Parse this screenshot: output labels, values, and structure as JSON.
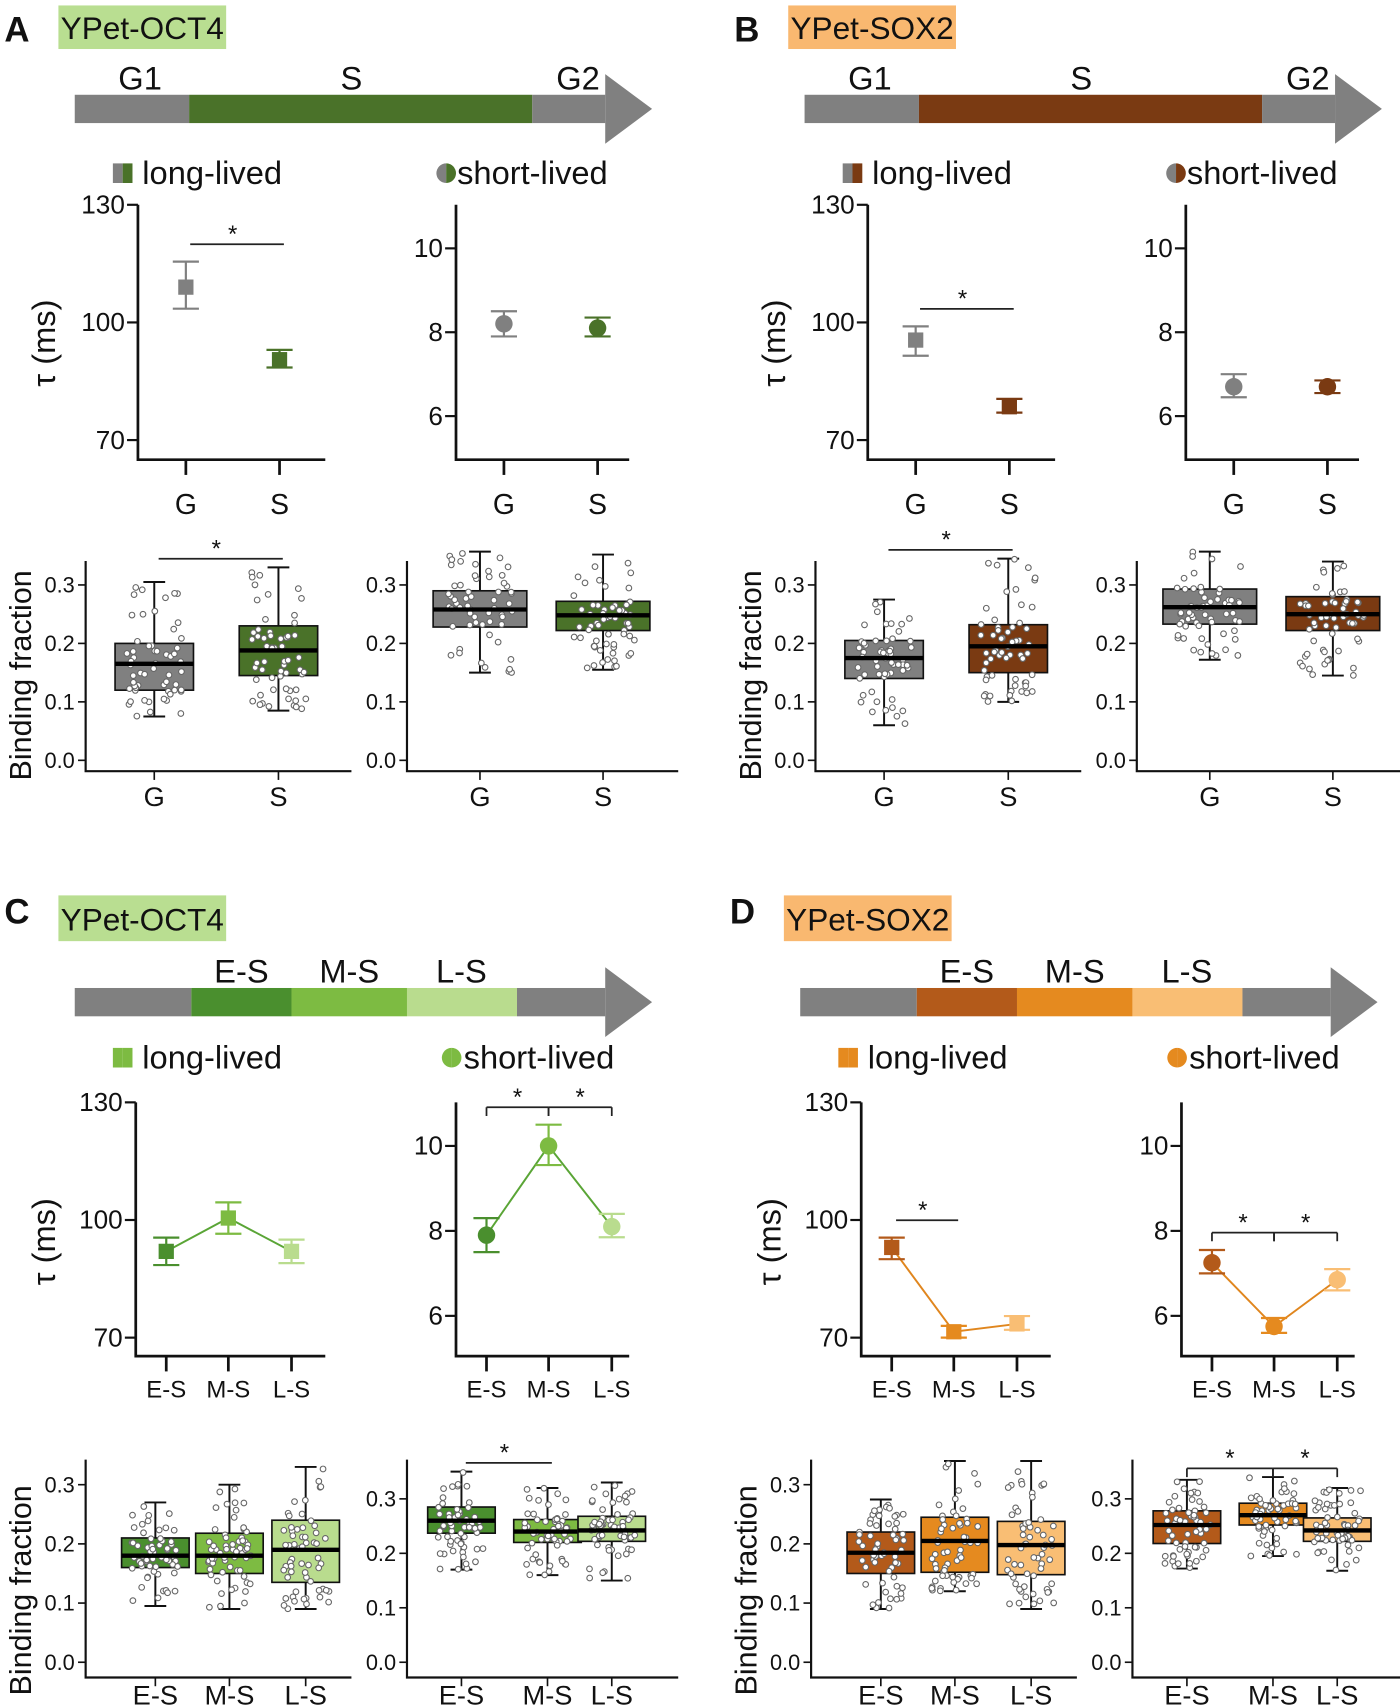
{
  "chart_data": [
    {
      "letter": "A",
      "construct": "YPet-OCT4",
      "construct_color": "#b9de91",
      "timeline": [
        {
          "label": "G1",
          "color": "#808080"
        },
        {
          "label": "S",
          "color": "#4a7229"
        },
        {
          "label": "G2",
          "color": "#808080"
        }
      ],
      "legend": {
        "long": "long-lived",
        "short": "short-lived",
        "icon_colors": [
          "#808080",
          "#4a7229"
        ]
      },
      "tau_long": {
        "type": "scatter",
        "ylabel": "τ (ms)",
        "yticks": [
          70,
          100,
          130
        ],
        "ylim": [
          65,
          130
        ],
        "categories": [
          "G",
          "S"
        ],
        "values": [
          109,
          90.5
        ],
        "err_low": [
          103.5,
          88.5
        ],
        "err_high": [
          115.5,
          93
        ],
        "colors": [
          "#808080",
          "#4a7229"
        ],
        "connect": false,
        "significance": [
          {
            "from": 0,
            "to": 1,
            "label": "*"
          }
        ]
      },
      "tau_short": {
        "type": "scatter",
        "yticks": [
          6,
          8,
          10
        ],
        "ylim": [
          5,
          11
        ],
        "categories": [
          "G",
          "S"
        ],
        "values": [
          8.2,
          8.1
        ],
        "err_low": [
          7.9,
          7.9
        ],
        "err_high": [
          8.5,
          8.35
        ],
        "colors": [
          "#808080",
          "#4a7229"
        ],
        "connect": false,
        "significance": []
      },
      "binding_long": {
        "type": "box",
        "ylabel": "Binding fraction",
        "yticks": [
          "0.0",
          "0.1",
          "0.2",
          "0.3"
        ],
        "categories": [
          "G",
          "S"
        ],
        "boxes": [
          {
            "min": 0.075,
            "q1": 0.12,
            "median": 0.165,
            "q3": 0.2,
            "max": 0.305
          },
          {
            "min": 0.085,
            "q1": 0.145,
            "median": 0.188,
            "q3": 0.23,
            "max": 0.33
          }
        ],
        "colors": [
          "#808080",
          "#4a7229"
        ],
        "significance": [
          {
            "from": 0,
            "to": 1,
            "label": "*"
          }
        ]
      },
      "binding_short": {
        "type": "box",
        "yticks": [
          "0.0",
          "0.1",
          "0.2",
          "0.3"
        ],
        "categories": [
          "G",
          "S"
        ],
        "boxes": [
          {
            "min": 0.15,
            "q1": 0.228,
            "median": 0.258,
            "q3": 0.29,
            "max": 0.357
          },
          {
            "min": 0.155,
            "q1": 0.222,
            "median": 0.248,
            "q3": 0.272,
            "max": 0.352
          }
        ],
        "colors": [
          "#808080",
          "#4a7229"
        ],
        "significance": []
      }
    },
    {
      "letter": "B",
      "construct": "YPet-SOX2",
      "construct_color": "#f9b870",
      "timeline": [
        {
          "label": "G1",
          "color": "#808080"
        },
        {
          "label": "S",
          "color": "#7a3a12"
        },
        {
          "label": "G2",
          "color": "#808080"
        }
      ],
      "legend": {
        "long": "long-lived",
        "short": "short-lived",
        "icon_colors": [
          "#808080",
          "#7a3a12"
        ]
      },
      "tau_long": {
        "type": "scatter",
        "ylabel": "τ (ms)",
        "yticks": [
          70,
          100,
          130
        ],
        "ylim": [
          65,
          130
        ],
        "categories": [
          "G",
          "S"
        ],
        "values": [
          95.5,
          78.5
        ],
        "err_low": [
          91.5,
          77
        ],
        "err_high": [
          99,
          80.5
        ],
        "colors": [
          "#808080",
          "#7a3a12"
        ],
        "connect": false,
        "significance": [
          {
            "from": 0,
            "to": 1,
            "label": "*"
          }
        ]
      },
      "tau_short": {
        "type": "scatter",
        "yticks": [
          6,
          8,
          10
        ],
        "ylim": [
          5,
          11
        ],
        "categories": [
          "G",
          "S"
        ],
        "values": [
          6.7,
          6.7
        ],
        "err_low": [
          6.45,
          6.55
        ],
        "err_high": [
          7.0,
          6.85
        ],
        "colors": [
          "#808080",
          "#7a3a12"
        ],
        "connect": false,
        "significance": []
      },
      "binding_long": {
        "type": "box",
        "ylabel": "Binding fraction",
        "yticks": [
          "0.0",
          "0.1",
          "0.2",
          "0.3"
        ],
        "categories": [
          "G",
          "S"
        ],
        "boxes": [
          {
            "min": 0.06,
            "q1": 0.14,
            "median": 0.175,
            "q3": 0.205,
            "max": 0.275
          },
          {
            "min": 0.1,
            "q1": 0.15,
            "median": 0.195,
            "q3": 0.232,
            "max": 0.345
          }
        ],
        "colors": [
          "#808080",
          "#7a3a12"
        ],
        "significance": [
          {
            "from": 0,
            "to": 1,
            "label": "*"
          }
        ]
      },
      "binding_short": {
        "type": "box",
        "yticks": [
          "0.0",
          "0.1",
          "0.2",
          "0.3"
        ],
        "categories": [
          "G",
          "S"
        ],
        "boxes": [
          {
            "min": 0.172,
            "q1": 0.233,
            "median": 0.262,
            "q3": 0.293,
            "max": 0.357
          },
          {
            "min": 0.145,
            "q1": 0.222,
            "median": 0.25,
            "q3": 0.28,
            "max": 0.34
          }
        ],
        "colors": [
          "#808080",
          "#7a3a12"
        ],
        "significance": []
      }
    },
    {
      "letter": "C",
      "construct": "YPet-OCT4",
      "construct_color": "#b9de91",
      "timeline": [
        {
          "label": "",
          "color": "#808080"
        },
        {
          "label": "E-S",
          "color": "#4a8f2e"
        },
        {
          "label": "M-S",
          "color": "#7dbb42"
        },
        {
          "label": "L-S",
          "color": "#b9dc8e"
        },
        {
          "label": "",
          "color": "#808080"
        }
      ],
      "legend": {
        "long": "long-lived",
        "short": "short-lived",
        "icon_colors": [
          "#7dbb42",
          "#7dbb42"
        ]
      },
      "tau_long": {
        "type": "line",
        "ylabel": "τ (ms)",
        "yticks": [
          70,
          100,
          130
        ],
        "ylim": [
          65,
          130
        ],
        "categories": [
          "E-S",
          "M-S",
          "L-S"
        ],
        "values": [
          92,
          100.5,
          92
        ],
        "err_low": [
          88.5,
          96.5,
          89
        ],
        "err_high": [
          95.5,
          104.5,
          95
        ],
        "colors": [
          "#4a8f2e",
          "#7dbb42",
          "#b9dc8e"
        ],
        "connect": true,
        "line_color": "#5aa536",
        "significance": []
      },
      "tau_short": {
        "type": "line",
        "yticks": [
          6,
          8,
          10
        ],
        "ylim": [
          5,
          11
        ],
        "categories": [
          "E-S",
          "M-S",
          "L-S"
        ],
        "values": [
          7.9,
          10.0,
          8.1
        ],
        "err_low": [
          7.5,
          9.55,
          7.85
        ],
        "err_high": [
          8.3,
          10.5,
          8.4
        ],
        "colors": [
          "#4a8f2e",
          "#7dbb42",
          "#b9dc8e"
        ],
        "connect": true,
        "line_color": "#5aa536",
        "significance": [
          {
            "from": 0,
            "to": 1,
            "label": "*"
          },
          {
            "from": 1,
            "to": 2,
            "label": "*"
          }
        ]
      },
      "binding_long": {
        "type": "box",
        "ylabel": "Binding fraction",
        "yticks": [
          "0.0",
          "0.1",
          "0.2",
          "0.3"
        ],
        "categories": [
          "E-S",
          "M-S",
          "L-S"
        ],
        "boxes": [
          {
            "min": 0.095,
            "q1": 0.16,
            "median": 0.18,
            "q3": 0.21,
            "max": 0.27
          },
          {
            "min": 0.09,
            "q1": 0.15,
            "median": 0.18,
            "q3": 0.218,
            "max": 0.3
          },
          {
            "min": 0.09,
            "q1": 0.135,
            "median": 0.19,
            "q3": 0.24,
            "max": 0.33
          }
        ],
        "colors": [
          "#4a8f2e",
          "#7dbb42",
          "#b9dc8e"
        ],
        "significance": []
      },
      "binding_short": {
        "type": "box",
        "yticks": [
          "0.0",
          "0.1",
          "0.2",
          "0.3"
        ],
        "categories": [
          "E-S",
          "M-S",
          "L-S"
        ],
        "boxes": [
          {
            "min": 0.17,
            "q1": 0.237,
            "median": 0.26,
            "q3": 0.285,
            "max": 0.35
          },
          {
            "min": 0.16,
            "q1": 0.22,
            "median": 0.24,
            "q3": 0.262,
            "max": 0.32
          },
          {
            "min": 0.15,
            "q1": 0.222,
            "median": 0.242,
            "q3": 0.268,
            "max": 0.33
          }
        ],
        "colors": [
          "#4a8f2e",
          "#7dbb42",
          "#b9dc8e"
        ],
        "significance": [
          {
            "from": 0,
            "to": 1,
            "label": "*"
          }
        ]
      }
    },
    {
      "letter": "D",
      "construct": "YPet-SOX2",
      "construct_color": "#f9b870",
      "timeline": [
        {
          "label": "",
          "color": "#808080"
        },
        {
          "label": "E-S",
          "color": "#b35a1a"
        },
        {
          "label": "M-S",
          "color": "#e58a1f"
        },
        {
          "label": "L-S",
          "color": "#f9be74"
        },
        {
          "label": "",
          "color": "#808080"
        }
      ],
      "legend": {
        "long": "long-lived",
        "short": "short-lived",
        "icon_colors": [
          "#e58a1f",
          "#e58a1f"
        ]
      },
      "tau_long": {
        "type": "line",
        "ylabel": "τ (ms)",
        "yticks": [
          70,
          100,
          130
        ],
        "ylim": [
          65,
          130
        ],
        "categories": [
          "E-S",
          "M-S",
          "L-S"
        ],
        "values": [
          93,
          71.5,
          73.5
        ],
        "err_low": [
          90,
          70,
          72
        ],
        "err_high": [
          95.5,
          73,
          75.5
        ],
        "colors": [
          "#b35a1a",
          "#e58a1f",
          "#f9be74"
        ],
        "connect": true,
        "line_color": "#e0861e",
        "significance": [
          {
            "from": 0,
            "to": 1,
            "label": "*"
          }
        ]
      },
      "tau_short": {
        "type": "line",
        "yticks": [
          6,
          8,
          10
        ],
        "ylim": [
          5,
          11
        ],
        "categories": [
          "E-S",
          "M-S",
          "L-S"
        ],
        "values": [
          7.25,
          5.75,
          6.85
        ],
        "err_low": [
          7.0,
          5.6,
          6.6
        ],
        "err_high": [
          7.55,
          5.95,
          7.1
        ],
        "colors": [
          "#b35a1a",
          "#e58a1f",
          "#f9be74"
        ],
        "connect": true,
        "line_color": "#e0861e",
        "significance": [
          {
            "from": 0,
            "to": 1,
            "label": "*"
          },
          {
            "from": 1,
            "to": 2,
            "label": "*"
          }
        ]
      },
      "binding_long": {
        "type": "box",
        "ylabel": "Binding fraction",
        "yticks": [
          "0.0",
          "0.1",
          "0.2",
          "0.3"
        ],
        "categories": [
          "E-S",
          "M-S",
          "L-S"
        ],
        "boxes": [
          {
            "min": 0.09,
            "q1": 0.15,
            "median": 0.185,
            "q3": 0.22,
            "max": 0.275
          },
          {
            "min": 0.12,
            "q1": 0.152,
            "median": 0.205,
            "q3": 0.245,
            "max": 0.34
          },
          {
            "min": 0.09,
            "q1": 0.148,
            "median": 0.198,
            "q3": 0.238,
            "max": 0.34
          }
        ],
        "colors": [
          "#b35a1a",
          "#e58a1f",
          "#f9be74"
        ],
        "significance": []
      },
      "binding_short": {
        "type": "box",
        "yticks": [
          "0.0",
          "0.1",
          "0.2",
          "0.3"
        ],
        "categories": [
          "E-S",
          "M-S",
          "L-S"
        ],
        "boxes": [
          {
            "min": 0.172,
            "q1": 0.218,
            "median": 0.252,
            "q3": 0.278,
            "max": 0.335
          },
          {
            "min": 0.195,
            "q1": 0.252,
            "median": 0.27,
            "q3": 0.292,
            "max": 0.34
          },
          {
            "min": 0.168,
            "q1": 0.222,
            "median": 0.242,
            "q3": 0.265,
            "max": 0.32
          }
        ],
        "colors": [
          "#b35a1a",
          "#e58a1f",
          "#f9be74"
        ],
        "significance": [
          {
            "from": 0,
            "to": 1,
            "label": "*"
          },
          {
            "from": 1,
            "to": 2,
            "label": "*"
          }
        ]
      }
    }
  ]
}
